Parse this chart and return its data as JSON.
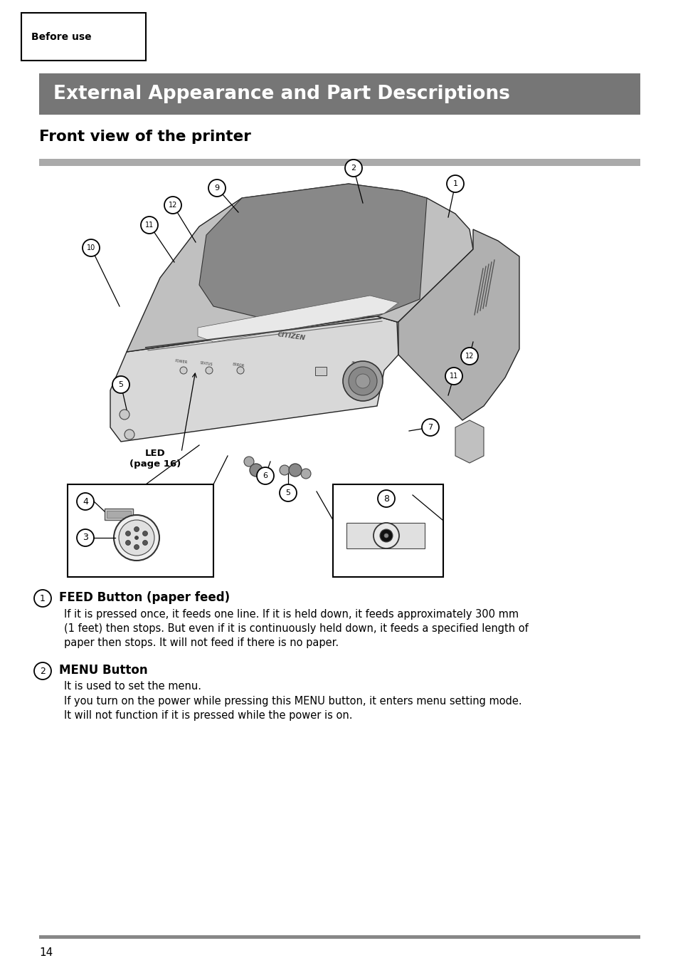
{
  "page_bg": "#ffffff",
  "header_tab_text": "Before use",
  "title_bg": "#767676",
  "title_text": "External Appearance and Part Descriptions",
  "title_color": "#ffffff",
  "subtitle_text": "Front view of the printer",
  "subtitle_color": "#000000",
  "subtitle_underline_color": "#aaaaaa",
  "section1_head": "FEED Button (paper feed)",
  "section1_body_line1": "If it is pressed once, it feeds one line. If it is held down, it feeds approximately 300 mm",
  "section1_body_line2": "(1 feet) then stops. But even if it is continuously held down, it feeds a specified length of",
  "section1_body_line3": "paper then stops. It will not feed if there is no paper.",
  "section2_head": "MENU Button",
  "section2_body1": "It is used to set the menu.",
  "section2_body2": "If you turn on the power while pressing this MENU button, it enters menu setting mode.",
  "section2_body3": "It will not function if it is pressed while the power is on.",
  "footer_num": "14",
  "footer_line_color": "#888888",
  "led_label_line1": "LED",
  "led_label_line2": "(page 16)",
  "citizen_text": "CITIZEN"
}
